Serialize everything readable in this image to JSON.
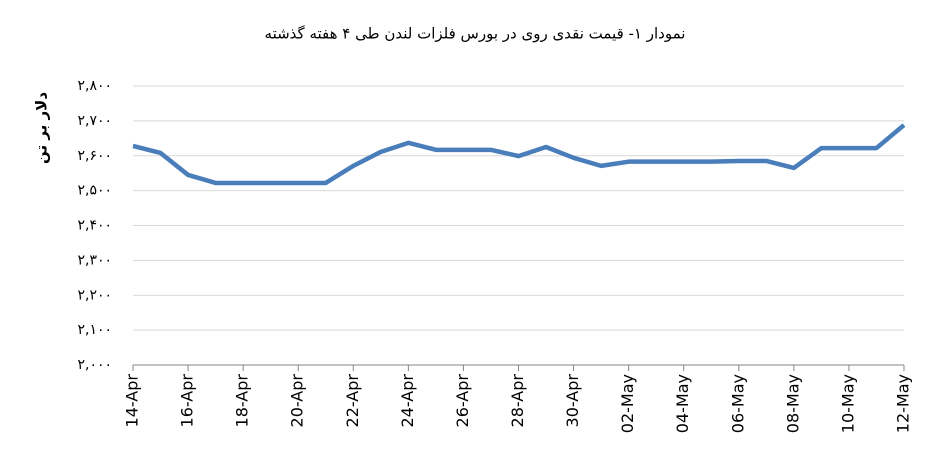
{
  "chart_data": {
    "type": "line",
    "title": "نمودار ۱- قیمت نقدی روی  در بورس فلزات لندن طی ۴ هفته گذشته",
    "y_label": "دلار بر تن",
    "categories": [
      "14-Apr",
      null,
      "16-Apr",
      null,
      "18-Apr",
      null,
      "20-Apr",
      null,
      "22-Apr",
      null,
      "24-Apr",
      null,
      "26-Apr",
      null,
      "28-Apr",
      null,
      "30-Apr",
      null,
      "02-May",
      null,
      "04-May",
      null,
      "06-May",
      null,
      "08-May",
      null,
      "10-May",
      null,
      "12-May"
    ],
    "values": [
      2628,
      2608,
      2545,
      2522,
      2522,
      2522,
      2522,
      2522,
      2571,
      2611,
      2637,
      2617,
      2617,
      2617,
      2599,
      2625,
      2594,
      2571,
      2583,
      2583,
      2583,
      2583,
      2585,
      2585,
      2565,
      2622,
      2622,
      2622,
      2688
    ],
    "color": "#4a7ebb",
    "ylim": [
      2000,
      2800
    ],
    "yticks": [
      {
        "value": 2000,
        "label": "۲,۰۰۰"
      },
      {
        "value": 2100,
        "label": "۲,۱۰۰"
      },
      {
        "value": 2200,
        "label": "۲,۲۰۰"
      },
      {
        "value": 2300,
        "label": "۲,۳۰۰"
      },
      {
        "value": 2400,
        "label": "۲,۴۰۰"
      },
      {
        "value": 2500,
        "label": "۲,۵۰۰"
      },
      {
        "value": 2600,
        "label": "۲,۶۰۰"
      },
      {
        "value": 2700,
        "label": "۲,۷۰۰"
      },
      {
        "value": 2800,
        "label": "۲,۸۰۰"
      }
    ],
    "grid": true
  }
}
